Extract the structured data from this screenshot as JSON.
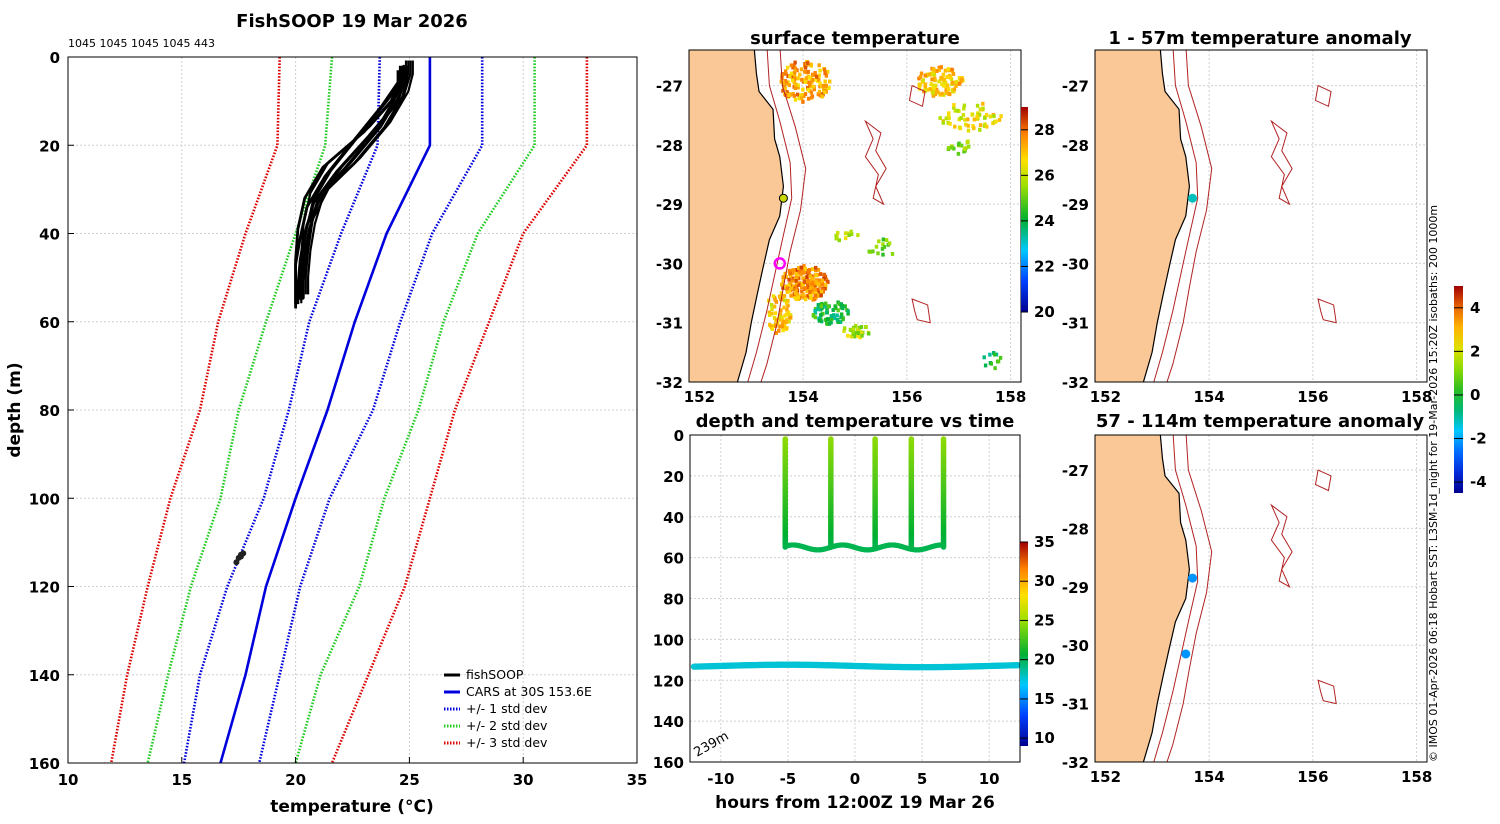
{
  "figure": {
    "main_title": "FishSOOP 19 Mar 2026",
    "counts": "1045 1045 1045 1045 443",
    "credit": "© IMOS 01-Apr-2026 06:18 Hobart SST: L3SM-1d_night for 19-Mar-2026 15:20Z isobaths: 200  1000m",
    "colors": {
      "land": "#f9c896",
      "fishsoop": "#000000",
      "cars": "#0000dd",
      "std1": "#0000dd",
      "std2": "#22cc22",
      "std3": "#dd0000",
      "isobath": "#b22222"
    }
  },
  "chart_data": [
    {
      "id": "profile",
      "type": "line",
      "title": "FishSOOP 19 Mar 2026",
      "xlabel": "temperature (°C)",
      "ylabel": "depth (m)",
      "xlim": [
        10,
        35
      ],
      "ylim": [
        0,
        160
      ],
      "y_reversed": true,
      "xticks": [
        10,
        15,
        20,
        25,
        30,
        35
      ],
      "yticks": [
        0,
        20,
        40,
        60,
        80,
        100,
        120,
        140,
        160
      ],
      "grid": true,
      "legend": [
        "fishSOOP",
        "CARS at 30S 153.6E",
        "+/- 1 std dev",
        "+/- 2 std dev",
        "+/- 3 std dev"
      ],
      "legend_position": "bottom-right",
      "cars_depths": [
        0,
        20,
        40,
        60,
        80,
        100,
        120,
        140,
        160
      ],
      "cars_temp": [
        25.9,
        25.9,
        24.0,
        22.6,
        21.4,
        20.0,
        18.7,
        17.8,
        16.7
      ],
      "std1_minus": [
        23.7,
        23.6,
        22.0,
        20.6,
        19.7,
        18.6,
        17.0,
        15.8,
        15.1
      ],
      "std1_plus": [
        28.2,
        28.2,
        26.0,
        24.6,
        23.4,
        21.5,
        20.2,
        19.3,
        18.4
      ],
      "std2_minus": [
        21.6,
        21.3,
        20.0,
        18.7,
        17.5,
        16.7,
        15.4,
        14.4,
        13.5
      ],
      "std2_plus": [
        30.5,
        30.5,
        28.0,
        26.5,
        25.4,
        23.9,
        22.8,
        21.1,
        20.0
      ],
      "std3_minus": [
        19.3,
        19.2,
        17.8,
        16.6,
        15.8,
        14.5,
        13.5,
        12.6,
        11.9
      ],
      "std3_plus": [
        32.8,
        32.8,
        30.0,
        28.5,
        27.0,
        25.9,
        24.8,
        23.2,
        21.6
      ],
      "fishsoop_casts": [
        {
          "temp": [
            24.8,
            24.8,
            24.5,
            23.2,
            21.8,
            20.8,
            20.4,
            20.2,
            20.1,
            20.1
          ],
          "depth": [
            2,
            5,
            10,
            18,
            26,
            33,
            40,
            46,
            52,
            56
          ]
        },
        {
          "temp": [
            24.6,
            24.6,
            23.8,
            22.7,
            21.3,
            20.5,
            20.2,
            20.0,
            20.0,
            20.0
          ],
          "depth": [
            2,
            5,
            11,
            18,
            27,
            34,
            41,
            47,
            53,
            57
          ]
        },
        {
          "temp": [
            24.9,
            24.9,
            24.7,
            23.9,
            22.6,
            21.2,
            20.5,
            20.3,
            20.2,
            20.2
          ],
          "depth": [
            2,
            5,
            9,
            16,
            24,
            31,
            38,
            45,
            51,
            55
          ]
        },
        {
          "temp": [
            24.5,
            24.5,
            24.2,
            23.0,
            21.2,
            20.4,
            20.1,
            20.0,
            20.0,
            20.0
          ],
          "depth": [
            3,
            6,
            10,
            17,
            25,
            32,
            39,
            46,
            52,
            56
          ]
        },
        {
          "temp": [
            24.7,
            24.7,
            24.3,
            23.5,
            22.2,
            21.0,
            20.6,
            20.4,
            20.3,
            20.3
          ],
          "depth": [
            2,
            5,
            10,
            17,
            25,
            32,
            39,
            45,
            51,
            55
          ]
        }
      ],
      "deep_points": {
        "temp": [
          17.4,
          17.5,
          17.6,
          17.7,
          17.6
        ],
        "depth": [
          114.5,
          113.5,
          112.8,
          112.5,
          113.2
        ]
      }
    },
    {
      "id": "sst",
      "type": "heatmap",
      "title": "surface temperature",
      "xticks": [
        152,
        154,
        156,
        158
      ],
      "yticks": [
        -27,
        -28,
        -29,
        -30,
        -31,
        -32
      ],
      "xlim": [
        151.8,
        158.2
      ],
      "ylim": [
        -32,
        -26.4
      ],
      "colorbar_ticks": [
        20,
        22,
        24,
        26,
        28
      ],
      "clim": [
        20,
        29
      ]
    },
    {
      "id": "depthtime",
      "type": "scatter",
      "title": "depth and temperature vs time",
      "xlabel": "hours from 12:00Z 19 Mar 26",
      "xticks": [
        -10,
        -5,
        0,
        5,
        10
      ],
      "yticks": [
        0,
        20,
        40,
        60,
        80,
        100,
        120,
        140,
        160
      ],
      "xlim": [
        -12.3,
        12.3
      ],
      "ylim": [
        0,
        160
      ],
      "y_reversed": true,
      "colorbar_ticks": [
        10,
        15,
        20,
        25,
        30,
        35
      ],
      "clim": [
        9,
        35
      ],
      "annotation": "239m",
      "cast_times": [
        -5.2,
        -1.8,
        1.5,
        4.2,
        6.6
      ],
      "bottom_depth": 55,
      "deep_series_depth": 113,
      "deep_series_temp": 17.6
    },
    {
      "id": "anom1",
      "type": "scatter",
      "title": "1 - 57m temperature anomaly",
      "xticks": [
        152,
        154,
        156,
        158
      ],
      "yticks": [
        -27,
        -28,
        -29,
        -30,
        -31,
        -32
      ],
      "xlim": [
        151.8,
        158.2
      ],
      "ylim": [
        -32,
        -26.4
      ],
      "points": [
        {
          "lon": 153.68,
          "lat": -28.9,
          "anomaly": -1.2
        }
      ]
    },
    {
      "id": "anom2",
      "type": "scatter",
      "title": "57 - 114m temperature anomaly",
      "xticks": [
        152,
        154,
        156,
        158
      ],
      "yticks": [
        -27,
        -28,
        -29,
        -30,
        -31,
        -32
      ],
      "xlim": [
        151.8,
        158.2
      ],
      "ylim": [
        -32,
        -26.4
      ],
      "points": [
        {
          "lon": 153.68,
          "lat": -28.85,
          "anomaly": -2.2
        },
        {
          "lon": 153.55,
          "lat": -30.15,
          "anomaly": -2.2
        }
      ]
    },
    {
      "id": "anom_colorbar",
      "type": "heatmap",
      "colorbar_ticks": [
        4,
        2,
        0,
        -2,
        -4
      ],
      "clim": [
        -4.5,
        5
      ]
    }
  ]
}
